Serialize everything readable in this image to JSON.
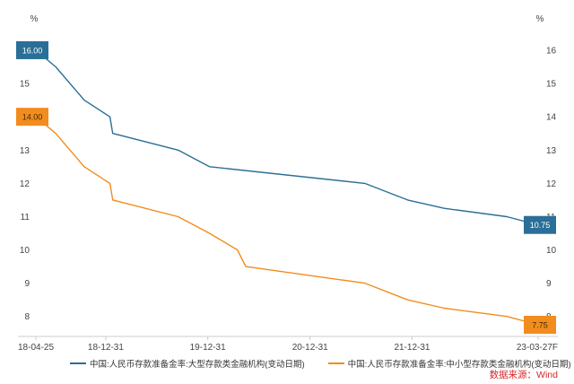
{
  "chart_data": {
    "type": "line",
    "y_unit_left": "%",
    "y_unit_right": "%",
    "ylim": [
      7.4,
      16.7
    ],
    "y_ticks": [
      8,
      9,
      10,
      11,
      12,
      13,
      14,
      15,
      16
    ],
    "x_tick_labels": [
      "18-04-25",
      "18-12-31",
      "19-12-31",
      "20-12-31",
      "21-12-31",
      "23-03-27F"
    ],
    "xlim": [
      "2018-04-25",
      "2023-03-27"
    ],
    "x_ticks": [
      "2018-04-25",
      "2018-12-31",
      "2019-12-31",
      "2020-12-31",
      "2021-12-31",
      "2023-03-27"
    ],
    "series": [
      {
        "name": "中国:人民币存款准备金率:大型存款类金融机构(变动日期)",
        "color": "#2a6f97",
        "start_label": "16.00",
        "end_label": "10.75",
        "points": [
          [
            "2018-04-25",
            16.0
          ],
          [
            "2018-07-05",
            15.5
          ],
          [
            "2018-10-15",
            14.5
          ],
          [
            "2019-01-15",
            14.0
          ],
          [
            "2019-01-25",
            13.5
          ],
          [
            "2019-09-16",
            13.0
          ],
          [
            "2020-01-06",
            12.5
          ],
          [
            "2021-07-15",
            12.0
          ],
          [
            "2021-12-15",
            11.5
          ],
          [
            "2022-04-25",
            11.25
          ],
          [
            "2022-12-05",
            11.0
          ],
          [
            "2023-03-27",
            10.75
          ]
        ]
      },
      {
        "name": "中国:人民币存款准备金率:中小型存款类金融机构(变动日期)",
        "color": "#f28c1e",
        "start_label": "14.00",
        "end_label": "7.75",
        "points": [
          [
            "2018-04-25",
            14.0
          ],
          [
            "2018-07-05",
            13.5
          ],
          [
            "2018-10-15",
            12.5
          ],
          [
            "2019-01-15",
            12.0
          ],
          [
            "2019-01-25",
            11.5
          ],
          [
            "2019-09-16",
            11.0
          ],
          [
            "2020-01-06",
            10.5
          ],
          [
            "2020-04-15",
            10.0
          ],
          [
            "2020-05-15",
            9.5
          ],
          [
            "2021-07-15",
            9.0
          ],
          [
            "2021-12-15",
            8.5
          ],
          [
            "2022-04-25",
            8.25
          ],
          [
            "2022-12-05",
            8.0
          ],
          [
            "2023-03-27",
            7.75
          ]
        ]
      }
    ]
  },
  "source_text": "数据来源：Wind"
}
